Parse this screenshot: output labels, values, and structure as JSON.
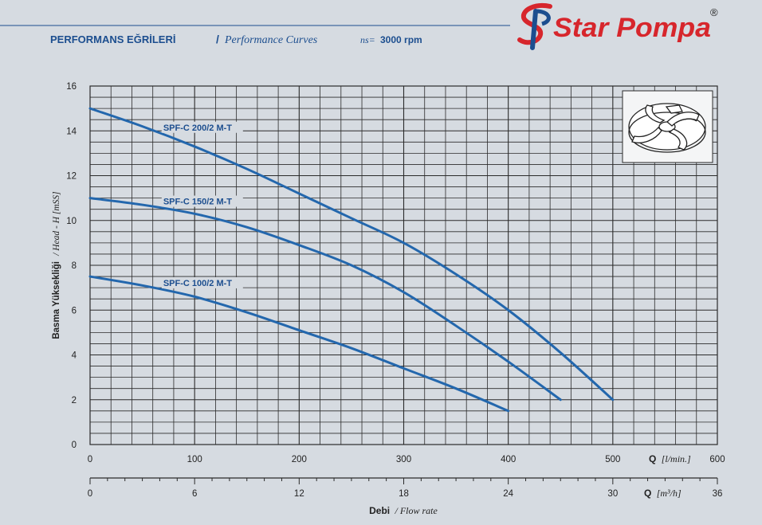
{
  "header": {
    "title_tr": "PERFORMANS EĞRİLERİ",
    "separator": "/",
    "title_en": "Performance Curves",
    "speed_label": "ns=",
    "speed_value": "3000 rpm",
    "brand_name": "Star Pompa",
    "registered_mark": "®"
  },
  "colors": {
    "background": "#d6dbe1",
    "brand_blue": "#1c4e8f",
    "curve_blue": "#2367ad",
    "grid": "#2b2b2b",
    "logo_red": "#d7262c"
  },
  "chart_data": {
    "type": "line",
    "xlabel_bold": "Debi",
    "xlabel_italic": "/ Flow rate",
    "ylabel_bold": "Basma Yüksekliği",
    "ylabel_italic": "/ Head - H [mSS]",
    "x_axis_primary": {
      "symbol": "Q",
      "unit": "[l/min.]",
      "ticks": [
        0,
        100,
        200,
        300,
        400,
        500,
        600
      ],
      "range": [
        0,
        600
      ]
    },
    "x_axis_secondary": {
      "symbol": "Q",
      "unit": "[m³/h]",
      "ticks": [
        0,
        6,
        12,
        18,
        24,
        30,
        36
      ],
      "range": [
        0,
        36
      ]
    },
    "y_axis": {
      "ticks": [
        0,
        2,
        4,
        6,
        8,
        10,
        12,
        14,
        16
      ],
      "range": [
        0,
        16
      ]
    },
    "grid": true,
    "legend_icon": "impeller-icon",
    "series": [
      {
        "name": "SPF-C 200/2 M-T",
        "x": [
          0,
          50,
          100,
          150,
          200,
          250,
          300,
          350,
          400,
          450,
          500
        ],
        "y": [
          15,
          14.2,
          13.3,
          12.3,
          11.2,
          10.1,
          9.0,
          7.6,
          6.0,
          4.1,
          2.0
        ]
      },
      {
        "name": "SPF-C 150/2 M-T",
        "x": [
          0,
          50,
          100,
          150,
          200,
          250,
          300,
          350,
          400,
          450
        ],
        "y": [
          11,
          10.7,
          10.3,
          9.7,
          8.9,
          8.0,
          6.8,
          5.3,
          3.7,
          2.0
        ]
      },
      {
        "name": "SPF-C 100/2 M-T",
        "x": [
          0,
          50,
          100,
          150,
          200,
          250,
          300,
          350,
          400
        ],
        "y": [
          7.5,
          7.1,
          6.6,
          5.9,
          5.1,
          4.3,
          3.4,
          2.5,
          1.5
        ]
      }
    ]
  }
}
